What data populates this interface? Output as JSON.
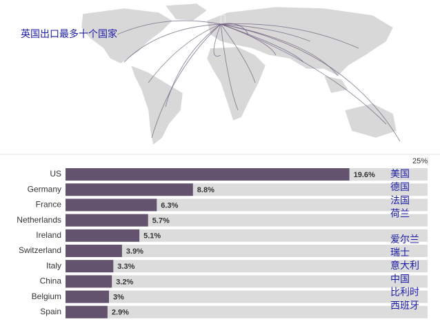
{
  "chart_data": {
    "type": "bar",
    "orientation": "horizontal",
    "title": "英国出口最多十个国家",
    "categories": [
      "US",
      "Germany",
      "France",
      "Netherlands",
      "Ireland",
      "Switzerland",
      "Italy",
      "China",
      "Belgium",
      "Spain"
    ],
    "values": [
      19.6,
      8.8,
      6.3,
      5.7,
      5.1,
      3.9,
      3.3,
      3.2,
      3,
      2.9
    ],
    "value_labels": [
      "19.6%",
      "8.8%",
      "6.3%",
      "5.7%",
      "5.1%",
      "3.9%",
      "3.3%",
      "3.2%",
      "3%",
      "2.9%"
    ],
    "annotations": [
      "美国",
      "德国",
      "法国",
      "荷兰",
      "爱尔兰",
      "瑞士",
      "意大利",
      "中国",
      "比利时",
      "西班牙"
    ],
    "color": "#64536e",
    "track_color": "#dcdcdc",
    "xlim": [
      0,
      25
    ],
    "xticks": [
      {
        "value": 25,
        "label": "25%"
      }
    ]
  }
}
